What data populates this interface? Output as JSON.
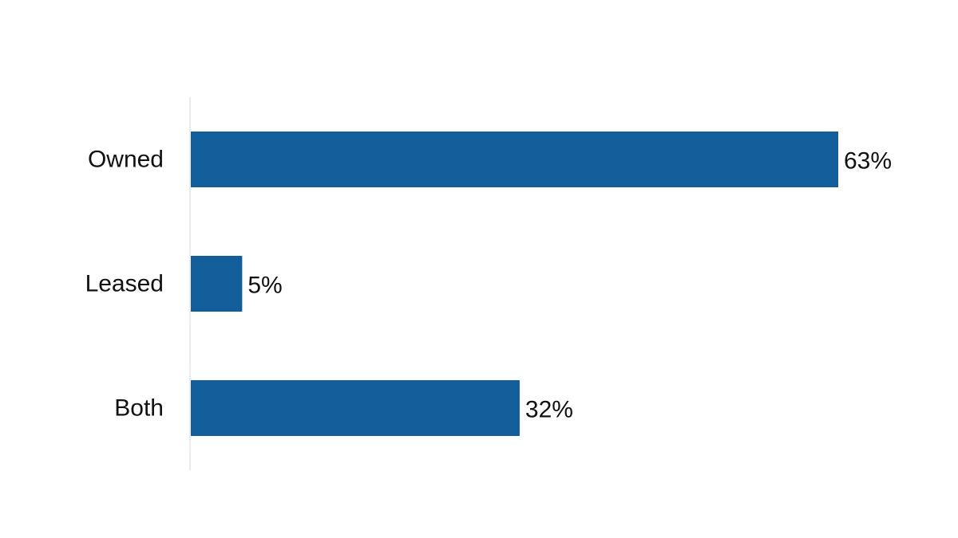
{
  "chart_data": {
    "type": "bar",
    "orientation": "horizontal",
    "categories": [
      "Owned",
      "Leased",
      "Both"
    ],
    "values": [
      63,
      5,
      32
    ],
    "value_labels": [
      "63%",
      "5%",
      "32%"
    ],
    "unit": "%",
    "xlim": [
      0,
      63
    ],
    "title": "",
    "xlabel": "",
    "ylabel": "",
    "grid": false,
    "legend": "none"
  },
  "colors": {
    "bar": "#125E9A",
    "axis_line": "#D9D9D9",
    "text": "#111111"
  }
}
